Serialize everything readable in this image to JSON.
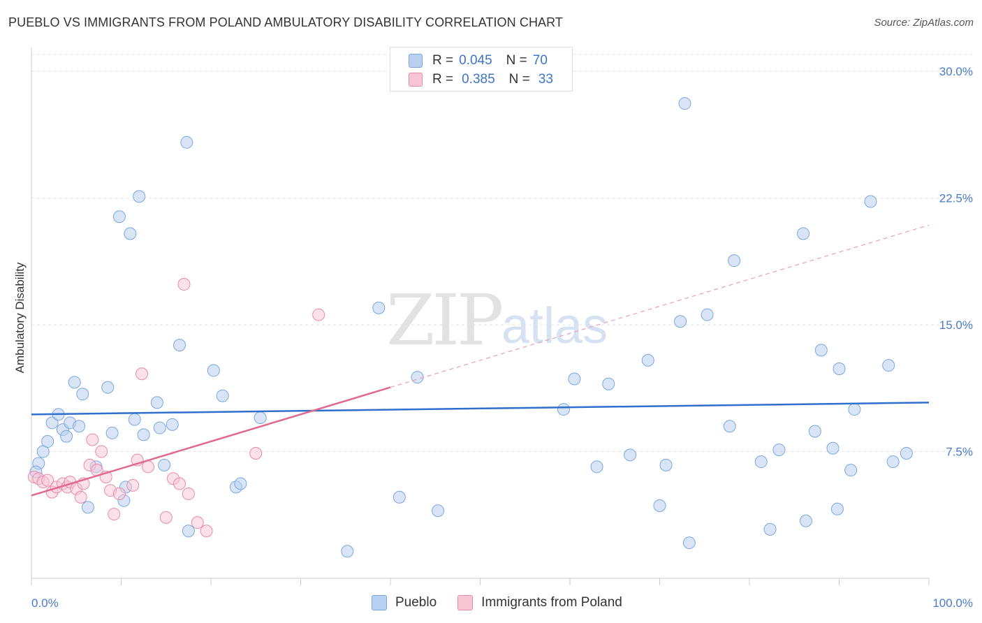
{
  "title": "PUEBLO VS IMMIGRANTS FROM POLAND AMBULATORY DISABILITY CORRELATION CHART",
  "source": "Source: ZipAtlas.com",
  "watermark": {
    "zip": "ZIP",
    "atlas": "atlas"
  },
  "legend": {
    "r_label": "R =",
    "n_label": "N =",
    "series": [
      {
        "name": "Pueblo",
        "r": "0.045",
        "n": "70",
        "color": "#7aa7e0",
        "fill": "#b9d0f0"
      },
      {
        "name": "Immigrants from Poland",
        "r": "0.385",
        "n": "33",
        "color": "#e88aa8",
        "fill": "#f8c6d5"
      }
    ]
  },
  "chart_data": {
    "type": "scatter",
    "title": "PUEBLO VS IMMIGRANTS FROM POLAND AMBULATORY DISABILITY CORRELATION CHART",
    "xlabel": "",
    "ylabel": "Ambulatory Disability",
    "xlim": [
      0,
      100
    ],
    "ylim": [
      0,
      31
    ],
    "x_tick_labels": [
      "0.0%",
      "100.0%"
    ],
    "y_ticks": [
      7.5,
      15.0,
      22.5,
      30.0
    ],
    "y_tick_labels": [
      "7.5%",
      "15.0%",
      "22.5%",
      "30.0%"
    ],
    "grid": true,
    "legend_position": "top-center",
    "series": [
      {
        "name": "Pueblo",
        "color": "#3d74c6",
        "points": [
          [
            0.8,
            6.8
          ],
          [
            1.3,
            7.5
          ],
          [
            1.8,
            8.1
          ],
          [
            2.3,
            9.2
          ],
          [
            3.0,
            9.7
          ],
          [
            3.5,
            8.8
          ],
          [
            3.9,
            8.4
          ],
          [
            4.3,
            9.2
          ],
          [
            4.8,
            11.6
          ],
          [
            5.3,
            9.0
          ],
          [
            5.7,
            10.9
          ],
          [
            6.3,
            4.2
          ],
          [
            7.2,
            6.6
          ],
          [
            8.5,
            11.3
          ],
          [
            9.0,
            8.6
          ],
          [
            9.8,
            21.4
          ],
          [
            10.3,
            4.6
          ],
          [
            10.5,
            5.4
          ],
          [
            11.0,
            20.4
          ],
          [
            11.5,
            9.4
          ],
          [
            12.0,
            22.6
          ],
          [
            12.5,
            8.5
          ],
          [
            14.0,
            10.4
          ],
          [
            14.3,
            8.9
          ],
          [
            14.8,
            6.7
          ],
          [
            15.7,
            9.1
          ],
          [
            16.5,
            13.8
          ],
          [
            17.3,
            25.8
          ],
          [
            17.5,
            2.8
          ],
          [
            20.3,
            12.3
          ],
          [
            21.3,
            10.8
          ],
          [
            22.8,
            5.4
          ],
          [
            23.3,
            5.6
          ],
          [
            25.5,
            9.5
          ],
          [
            35.2,
            1.6
          ],
          [
            38.7,
            16.0
          ],
          [
            41.0,
            4.8
          ],
          [
            43.0,
            11.9
          ],
          [
            45.3,
            4.0
          ],
          [
            59.3,
            10.0
          ],
          [
            60.5,
            11.8
          ],
          [
            63.0,
            6.6
          ],
          [
            64.3,
            11.5
          ],
          [
            66.7,
            7.3
          ],
          [
            68.7,
            12.9
          ],
          [
            70.0,
            4.3
          ],
          [
            70.7,
            6.7
          ],
          [
            72.3,
            15.2
          ],
          [
            72.8,
            28.1
          ],
          [
            73.3,
            2.1
          ],
          [
            75.3,
            15.6
          ],
          [
            77.8,
            9.0
          ],
          [
            78.3,
            18.8
          ],
          [
            81.3,
            6.9
          ],
          [
            82.3,
            2.9
          ],
          [
            83.3,
            7.6
          ],
          [
            86.0,
            20.4
          ],
          [
            86.3,
            3.4
          ],
          [
            87.3,
            8.7
          ],
          [
            88.0,
            13.5
          ],
          [
            89.3,
            7.7
          ],
          [
            89.8,
            4.1
          ],
          [
            90.0,
            12.4
          ],
          [
            91.3,
            6.4
          ],
          [
            91.7,
            10.0
          ],
          [
            93.5,
            22.3
          ],
          [
            95.5,
            12.6
          ],
          [
            96.0,
            6.9
          ],
          [
            97.5,
            7.4
          ],
          [
            0.5,
            6.3
          ]
        ],
        "trend": {
          "x0": 0,
          "y0": 9.7,
          "x1": 100,
          "y1": 10.4
        }
      },
      {
        "name": "Immigrants from Poland",
        "color": "#e0698f",
        "points": [
          [
            0.3,
            6.0
          ],
          [
            0.8,
            5.9
          ],
          [
            1.3,
            5.7
          ],
          [
            1.8,
            5.8
          ],
          [
            2.3,
            5.1
          ],
          [
            2.8,
            5.4
          ],
          [
            3.5,
            5.6
          ],
          [
            4.0,
            5.4
          ],
          [
            4.3,
            5.7
          ],
          [
            5.0,
            5.3
          ],
          [
            5.5,
            4.8
          ],
          [
            5.8,
            5.6
          ],
          [
            6.5,
            6.7
          ],
          [
            6.8,
            8.2
          ],
          [
            7.3,
            6.4
          ],
          [
            7.8,
            7.5
          ],
          [
            8.3,
            6.0
          ],
          [
            8.8,
            5.2
          ],
          [
            9.2,
            3.8
          ],
          [
            9.8,
            5.0
          ],
          [
            11.3,
            5.5
          ],
          [
            11.8,
            7.0
          ],
          [
            12.3,
            12.1
          ],
          [
            13.0,
            6.6
          ],
          [
            15.0,
            3.6
          ],
          [
            15.8,
            5.9
          ],
          [
            16.5,
            5.6
          ],
          [
            17.0,
            17.4
          ],
          [
            17.5,
            5.0
          ],
          [
            18.5,
            3.3
          ],
          [
            19.5,
            2.8
          ],
          [
            25.0,
            7.4
          ],
          [
            32.0,
            15.6
          ]
        ],
        "trend": {
          "x0": 0,
          "y0": 4.9,
          "x1": 40,
          "y1": 11.3,
          "dashed_to_x": 100,
          "dashed_to_y": 20.9
        }
      }
    ]
  }
}
